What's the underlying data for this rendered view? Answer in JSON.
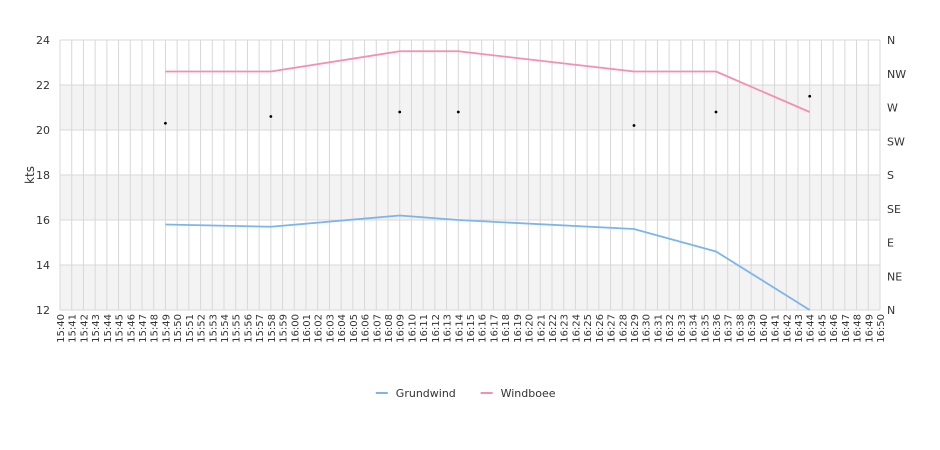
{
  "chart_data": {
    "type": "line",
    "ylabel": "kts",
    "ylim": [
      12,
      24
    ],
    "yticks": [
      12,
      14,
      16,
      18,
      20,
      22,
      24
    ],
    "y2_ticks": [
      "N",
      "NE",
      "E",
      "SE",
      "S",
      "SW",
      "W",
      "NW",
      "N"
    ],
    "x_start": "15:40",
    "x_end": "16:50",
    "x_tick_step_min": 1,
    "grid": true,
    "legend_position": "bottom-center",
    "series": [
      {
        "name": "Grundwind",
        "color": "#7cb5ec",
        "points": [
          {
            "x": "15:49",
            "y": 15.8
          },
          {
            "x": "15:58",
            "y": 15.7
          },
          {
            "x": "16:09",
            "y": 16.2
          },
          {
            "x": "16:14",
            "y": 16.0
          },
          {
            "x": "16:29",
            "y": 15.6
          },
          {
            "x": "16:36",
            "y": 14.6
          },
          {
            "x": "16:44",
            "y": 12.0
          }
        ]
      },
      {
        "name": "Windboee",
        "color": "#f48fb1",
        "points": [
          {
            "x": "15:49",
            "y": 22.6
          },
          {
            "x": "15:58",
            "y": 22.6
          },
          {
            "x": "16:09",
            "y": 23.5
          },
          {
            "x": "16:14",
            "y": 23.5
          },
          {
            "x": "16:29",
            "y": 22.6
          },
          {
            "x": "16:36",
            "y": 22.6
          },
          {
            "x": "16:44",
            "y": 20.8
          }
        ]
      }
    ],
    "direction_markers": [
      {
        "x": "15:49",
        "y": 20.3
      },
      {
        "x": "15:58",
        "y": 20.6
      },
      {
        "x": "16:09",
        "y": 20.8
      },
      {
        "x": "16:14",
        "y": 20.8
      },
      {
        "x": "16:29",
        "y": 20.2
      },
      {
        "x": "16:36",
        "y": 20.8
      },
      {
        "x": "16:44",
        "y": 21.5
      }
    ]
  }
}
